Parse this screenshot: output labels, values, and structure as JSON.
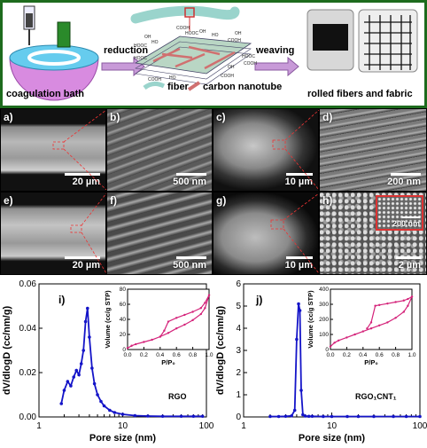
{
  "schematic": {
    "coagulation_bath": "coagulation bath",
    "reduction": "reduction",
    "weaving": "weaving",
    "fiber": "fiber",
    "carbon_nanotube": "carbon nanotube",
    "rolled_fibers_and_fabric": "rolled fibers and fabric",
    "group_labels": [
      "HOOC",
      "OH",
      "HO",
      "COOH",
      "HOOC",
      "OH",
      "HO",
      "COOH",
      "OH",
      "HOOC",
      "COOH",
      "HO",
      "COOH",
      "OH",
      "HOOC",
      "COOH"
    ]
  },
  "panels": [
    {
      "label": "a)",
      "scale": "20 µm"
    },
    {
      "label": "b)",
      "scale": "500 nm"
    },
    {
      "label": "c)",
      "scale": "10 µm"
    },
    {
      "label": "d)",
      "scale": "200 nm"
    },
    {
      "label": "e)",
      "scale": "20 µm"
    },
    {
      "label": "f)",
      "scale": "500 nm"
    },
    {
      "label": "g)",
      "scale": "10 µm"
    },
    {
      "label": "h)",
      "scale": "2 µm",
      "inset_scale": "200 nm"
    }
  ],
  "colors": {
    "frame": "#1d6b1d",
    "main_curve": "#1414c8",
    "inset_curve": "#d4237a"
  },
  "chart_data": [
    {
      "type": "line",
      "panel": "i)",
      "xlabel": "Pore size (nm)",
      "ylabel": "dV/dlogD (cc/nm/g)",
      "xscale": "log",
      "xlim": [
        1,
        100
      ],
      "ylim": [
        0,
        0.06
      ],
      "xticks": [
        1,
        10,
        100
      ],
      "yticks": [
        0.0,
        0.02,
        0.04,
        0.06
      ],
      "series": [
        {
          "name": "RGO",
          "x": [
            1.85,
            2.0,
            2.2,
            2.4,
            2.6,
            2.8,
            3.0,
            3.2,
            3.4,
            3.6,
            3.8,
            4.0,
            4.3,
            4.6,
            5.0,
            5.5,
            6,
            7,
            8,
            10,
            14,
            20,
            30,
            50,
            70,
            90
          ],
          "y": [
            0.006,
            0.012,
            0.016,
            0.014,
            0.018,
            0.021,
            0.019,
            0.024,
            0.03,
            0.043,
            0.049,
            0.036,
            0.022,
            0.015,
            0.01,
            0.007,
            0.005,
            0.003,
            0.002,
            0.0012,
            0.0006,
            0.0004,
            0.0003,
            0.0003,
            0.0003,
            0.0003
          ]
        }
      ],
      "inset": {
        "xlabel": "P/P₀",
        "ylabel": "Volume (cc/g STP)",
        "xlim": [
          0,
          1.0
        ],
        "ylim": [
          0,
          80
        ],
        "xticks": [
          0.0,
          0.2,
          0.4,
          0.6,
          0.8,
          1.0
        ],
        "yticks": [
          0,
          20,
          40,
          60,
          80
        ],
        "adsorption": {
          "x": [
            0.0,
            0.05,
            0.1,
            0.2,
            0.3,
            0.4,
            0.5,
            0.6,
            0.7,
            0.8,
            0.9,
            0.95,
            1.0
          ],
          "y": [
            2,
            5,
            7,
            10,
            13,
            17,
            22,
            28,
            33,
            39,
            47,
            55,
            72
          ]
        },
        "desorption": {
          "x": [
            1.0,
            0.95,
            0.9,
            0.8,
            0.7,
            0.6,
            0.5,
            0.45,
            0.4
          ],
          "y": [
            72,
            62,
            55,
            50,
            46,
            42,
            37,
            25,
            17
          ]
        }
      }
    },
    {
      "type": "line",
      "panel": "j)",
      "xlabel": "Pore size (nm)",
      "ylabel": "dV/dlogD (cc/nm/g)",
      "xscale": "log",
      "xlim": [
        1,
        100
      ],
      "ylim": [
        0,
        6
      ],
      "xticks": [
        1,
        10,
        100
      ],
      "yticks": [
        0,
        1,
        2,
        3,
        4,
        5,
        6
      ],
      "series": [
        {
          "name": "RGO₁CNT₁",
          "x": [
            2.0,
            2.5,
            3.0,
            3.5,
            3.8,
            4.0,
            4.2,
            4.35,
            4.5,
            4.7,
            5.0,
            5.5,
            6,
            8,
            10,
            15,
            20,
            30,
            50,
            70,
            100
          ],
          "y": [
            0.02,
            0.02,
            0.03,
            0.05,
            0.3,
            3.5,
            5.1,
            4.8,
            1.2,
            0.1,
            0.04,
            0.03,
            0.03,
            0.02,
            0.02,
            0.02,
            0.02,
            0.02,
            0.02,
            0.02,
            0.02
          ]
        }
      ],
      "inset": {
        "xlabel": "P/P₀",
        "ylabel": "Volume (cc/g STP)",
        "xlim": [
          0,
          1.0
        ],
        "ylim": [
          0,
          400
        ],
        "xticks": [
          0.0,
          0.2,
          0.4,
          0.6,
          0.8,
          1.0
        ],
        "yticks": [
          0,
          100,
          200,
          300,
          400
        ],
        "adsorption": {
          "x": [
            0.0,
            0.05,
            0.1,
            0.2,
            0.3,
            0.4,
            0.5,
            0.6,
            0.7,
            0.8,
            0.9,
            0.95,
            1.0
          ],
          "y": [
            20,
            45,
            60,
            80,
            100,
            120,
            140,
            160,
            180,
            210,
            250,
            290,
            350
          ]
        },
        "desorption": {
          "x": [
            1.0,
            0.95,
            0.9,
            0.8,
            0.7,
            0.6,
            0.55,
            0.5,
            0.45
          ],
          "y": [
            350,
            335,
            325,
            315,
            305,
            295,
            290,
            180,
            140
          ]
        }
      }
    }
  ]
}
